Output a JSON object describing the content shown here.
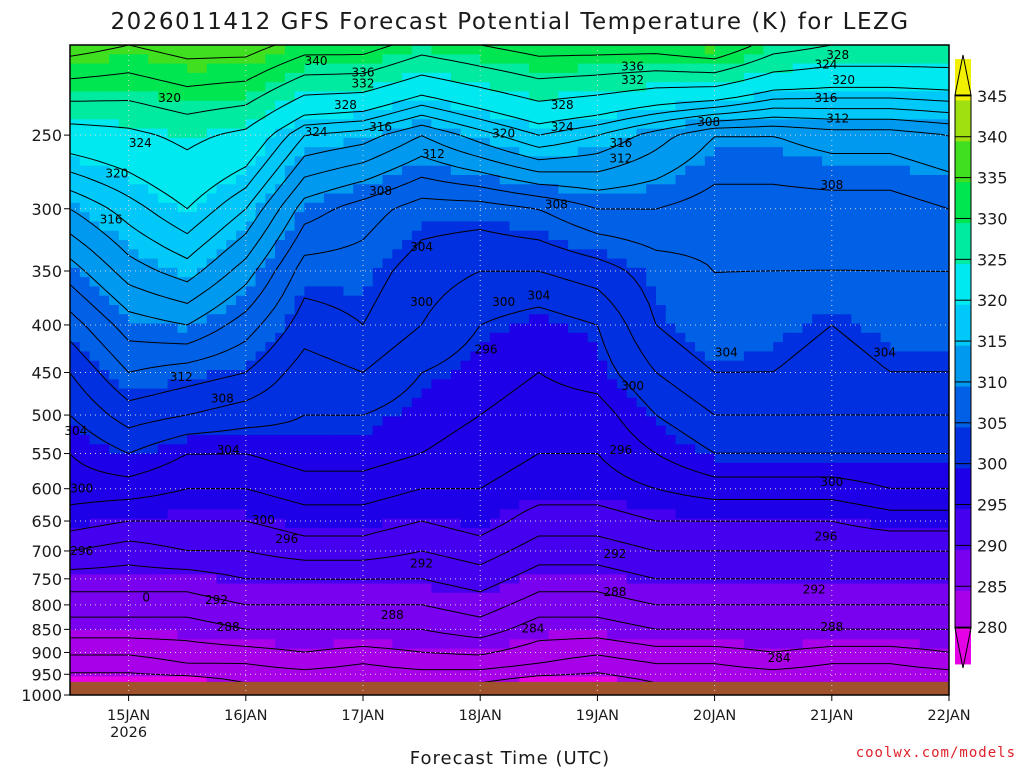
{
  "chart_data": {
    "type": "heatmap",
    "title": "2026011412 GFS Forecast Potential Temperature (K) for LEZG",
    "xlabel": "Forecast Time (UTC)",
    "ylabel": "",
    "credit": "coolwx.com/models",
    "x_ticks": [
      {
        "value": 0.0,
        "label": "15JAN",
        "sublabel": "2026"
      },
      {
        "value": 1.0,
        "label": "16JAN",
        "sublabel": ""
      },
      {
        "value": 2.0,
        "label": "17JAN",
        "sublabel": ""
      },
      {
        "value": 3.0,
        "label": "18JAN",
        "sublabel": ""
      },
      {
        "value": 4.0,
        "label": "19JAN",
        "sublabel": ""
      },
      {
        "value": 5.0,
        "label": "20JAN",
        "sublabel": ""
      },
      {
        "value": 6.0,
        "label": "21JAN",
        "sublabel": ""
      },
      {
        "value": 7.0,
        "label": "22JAN",
        "sublabel": ""
      }
    ],
    "xlim": [
      -0.5,
      7.0
    ],
    "y_ticks": [
      "250",
      "300",
      "350",
      "400",
      "450",
      "500",
      "550",
      "600",
      "650",
      "700",
      "750",
      "800",
      "850",
      "900",
      "950",
      "1000"
    ],
    "ylim_hpa": [
      200,
      1000
    ],
    "y_scale": "log",
    "surface_pressure_hpa": 968,
    "colorbar": {
      "levels": [
        345,
        340,
        335,
        330,
        325,
        320,
        315,
        310,
        305,
        300,
        295,
        290,
        285,
        280
      ],
      "min": 275,
      "max": 350,
      "stops": [
        {
          "value": 278,
          "color": "#e600e6"
        },
        {
          "value": 282,
          "color": "#a800e8"
        },
        {
          "value": 287,
          "color": "#7a00f0"
        },
        {
          "value": 292,
          "color": "#4600f0"
        },
        {
          "value": 297,
          "color": "#1e00e8"
        },
        {
          "value": 302,
          "color": "#0030e0"
        },
        {
          "value": 307,
          "color": "#0060e6"
        },
        {
          "value": 312,
          "color": "#0099f0"
        },
        {
          "value": 317,
          "color": "#00c8f8"
        },
        {
          "value": 322,
          "color": "#00e8f0"
        },
        {
          "value": 327,
          "color": "#00eaa0"
        },
        {
          "value": 332,
          "color": "#00e650"
        },
        {
          "value": 337,
          "color": "#40e020"
        },
        {
          "value": 342,
          "color": "#a0e010"
        },
        {
          "value": 347,
          "color": "#f0f000"
        }
      ]
    },
    "ground_color": "#a0522d",
    "profile_times": [
      -0.5,
      0.0,
      0.5,
      1.0,
      1.5,
      2.0,
      2.5,
      3.0,
      3.5,
      4.0,
      4.5,
      5.0,
      5.5,
      6.0,
      6.5,
      7.0
    ],
    "profile_pressures_hpa": [
      968,
      925,
      850,
      800,
      750,
      700,
      650,
      600,
      550,
      500,
      450,
      400,
      350,
      300,
      250,
      200
    ],
    "theta_profiles_k": [
      [
        279,
        281,
        285,
        287,
        289,
        292,
        295,
        297,
        298,
        300,
        302,
        305,
        309,
        314,
        322,
        338
      ],
      [
        279,
        281,
        285,
        287,
        289,
        291,
        294,
        297,
        300,
        303,
        306,
        309,
        313,
        317,
        323,
        336
      ],
      [
        279,
        282,
        285,
        287,
        289,
        292,
        294,
        296,
        298,
        302,
        305,
        310,
        315,
        320,
        325,
        338
      ],
      [
        280,
        282,
        286,
        288,
        290,
        292,
        294,
        296,
        298,
        301,
        304,
        307,
        311,
        316,
        323,
        338
      ],
      [
        280,
        283,
        286,
        288,
        290,
        293,
        295,
        297,
        299,
        300,
        301,
        303,
        305,
        309,
        316,
        334
      ],
      [
        280,
        282,
        286,
        288,
        290,
        293,
        295,
        297,
        299,
        300,
        302,
        304,
        305,
        307,
        315,
        334
      ],
      [
        280,
        283,
        286,
        288,
        290,
        292,
        294,
        296,
        298,
        299,
        300,
        302,
        303,
        305,
        312,
        330
      ],
      [
        280,
        283,
        287,
        289,
        291,
        293,
        295,
        296,
        297,
        298,
        299,
        300,
        302,
        305,
        315,
        332
      ],
      [
        279,
        282,
        285,
        287,
        289,
        291,
        293,
        295,
        296,
        297,
        298,
        299,
        302,
        306,
        318,
        334
      ],
      [
        279,
        281,
        285,
        287,
        289,
        291,
        293,
        295,
        296,
        297,
        299,
        300,
        303,
        308,
        316,
        334
      ],
      [
        280,
        282,
        286,
        288,
        290,
        292,
        294,
        296,
        298,
        300,
        302,
        304,
        305,
        308,
        313,
        334
      ],
      [
        280,
        282,
        286,
        288,
        290,
        292,
        294,
        297,
        300,
        302,
        304,
        306,
        306,
        307,
        310,
        336
      ],
      [
        280,
        283,
        286,
        288,
        290,
        292,
        294,
        297,
        300,
        302,
        304,
        305,
        306,
        307,
        310,
        330
      ],
      [
        280,
        282,
        286,
        288,
        290,
        292,
        294,
        297,
        300,
        302,
        303,
        304,
        306,
        307,
        311,
        328
      ],
      [
        280,
        282,
        286,
        288,
        290,
        292,
        295,
        298,
        300,
        302,
        304,
        305,
        306,
        307,
        311,
        328
      ],
      [
        280,
        283,
        286,
        288,
        290,
        292,
        295,
        298,
        300,
        302,
        304,
        305,
        306,
        308,
        312,
        328
      ]
    ],
    "contour_levels_k": [
      280,
      282,
      284,
      286,
      288,
      290,
      292,
      294,
      296,
      298,
      300,
      302,
      304,
      306,
      308,
      310,
      312,
      314,
      316,
      318,
      320,
      324,
      328,
      332,
      336,
      340
    ],
    "contour_labels": [
      {
        "x": 0.1,
        "p": 255,
        "text": "324"
      },
      {
        "x": -0.1,
        "p": 275,
        "text": "320"
      },
      {
        "x": 0.35,
        "p": 228,
        "text": "320"
      },
      {
        "x": -0.15,
        "p": 308,
        "text": "316"
      },
      {
        "x": 0.45,
        "p": 455,
        "text": "312"
      },
      {
        "x": 0.8,
        "p": 480,
        "text": "308"
      },
      {
        "x": 0.85,
        "p": 545,
        "text": "304"
      },
      {
        "x": -0.45,
        "p": 520,
        "text": "304"
      },
      {
        "x": -0.4,
        "p": 600,
        "text": "300"
      },
      {
        "x": 1.15,
        "p": 648,
        "text": "300"
      },
      {
        "x": -0.4,
        "p": 700,
        "text": "296"
      },
      {
        "x": 1.35,
        "p": 680,
        "text": "296"
      },
      {
        "x": 0.75,
        "p": 790,
        "text": "292"
      },
      {
        "x": 2.5,
        "p": 722,
        "text": "292"
      },
      {
        "x": 0.85,
        "p": 845,
        "text": "288"
      },
      {
        "x": 2.25,
        "p": 820,
        "text": "288"
      },
      {
        "x": 3.45,
        "p": 848,
        "text": "284"
      },
      {
        "x": 2.5,
        "p": 378,
        "text": "300"
      },
      {
        "x": 2.5,
        "p": 330,
        "text": "304"
      },
      {
        "x": 2.15,
        "p": 287,
        "text": "308"
      },
      {
        "x": 2.6,
        "p": 262,
        "text": "312"
      },
      {
        "x": 2.15,
        "p": 245,
        "text": "316"
      },
      {
        "x": 1.6,
        "p": 248,
        "text": "324"
      },
      {
        "x": 1.85,
        "p": 232,
        "text": "328"
      },
      {
        "x": 2.0,
        "p": 220,
        "text": "332"
      },
      {
        "x": 2.0,
        "p": 214,
        "text": "336"
      },
      {
        "x": 1.6,
        "p": 208,
        "text": "340"
      },
      {
        "x": 3.2,
        "p": 249,
        "text": "320"
      },
      {
        "x": 3.7,
        "p": 245,
        "text": "324"
      },
      {
        "x": 3.7,
        "p": 232,
        "text": "328"
      },
      {
        "x": 4.3,
        "p": 218,
        "text": "332"
      },
      {
        "x": 4.3,
        "p": 211,
        "text": "336"
      },
      {
        "x": 3.2,
        "p": 378,
        "text": "300"
      },
      {
        "x": 3.05,
        "p": 425,
        "text": "296"
      },
      {
        "x": 3.5,
        "p": 372,
        "text": "304"
      },
      {
        "x": 3.65,
        "p": 297,
        "text": "308"
      },
      {
        "x": 4.2,
        "p": 255,
        "text": "316"
      },
      {
        "x": 4.2,
        "p": 265,
        "text": "312"
      },
      {
        "x": 4.3,
        "p": 465,
        "text": "300"
      },
      {
        "x": 4.2,
        "p": 545,
        "text": "296"
      },
      {
        "x": 4.15,
        "p": 705,
        "text": "292"
      },
      {
        "x": 4.15,
        "p": 775,
        "text": "288"
      },
      {
        "x": 5.1,
        "p": 428,
        "text": "304"
      },
      {
        "x": 4.95,
        "p": 242,
        "text": "308"
      },
      {
        "x": 6.0,
        "p": 283,
        "text": "308"
      },
      {
        "x": 6.05,
        "p": 240,
        "text": "312"
      },
      {
        "x": 5.95,
        "p": 228,
        "text": "316"
      },
      {
        "x": 6.1,
        "p": 218,
        "text": "320"
      },
      {
        "x": 5.95,
        "p": 210,
        "text": "324"
      },
      {
        "x": 6.05,
        "p": 205,
        "text": "328"
      },
      {
        "x": 6.45,
        "p": 428,
        "text": "304"
      },
      {
        "x": 6.0,
        "p": 590,
        "text": "300"
      },
      {
        "x": 5.95,
        "p": 675,
        "text": "296"
      },
      {
        "x": 5.85,
        "p": 770,
        "text": "292"
      },
      {
        "x": 6.0,
        "p": 845,
        "text": "288"
      },
      {
        "x": 5.55,
        "p": 913,
        "text": "284"
      },
      {
        "x": 0.15,
        "p": 786,
        "text": "0"
      }
    ]
  }
}
